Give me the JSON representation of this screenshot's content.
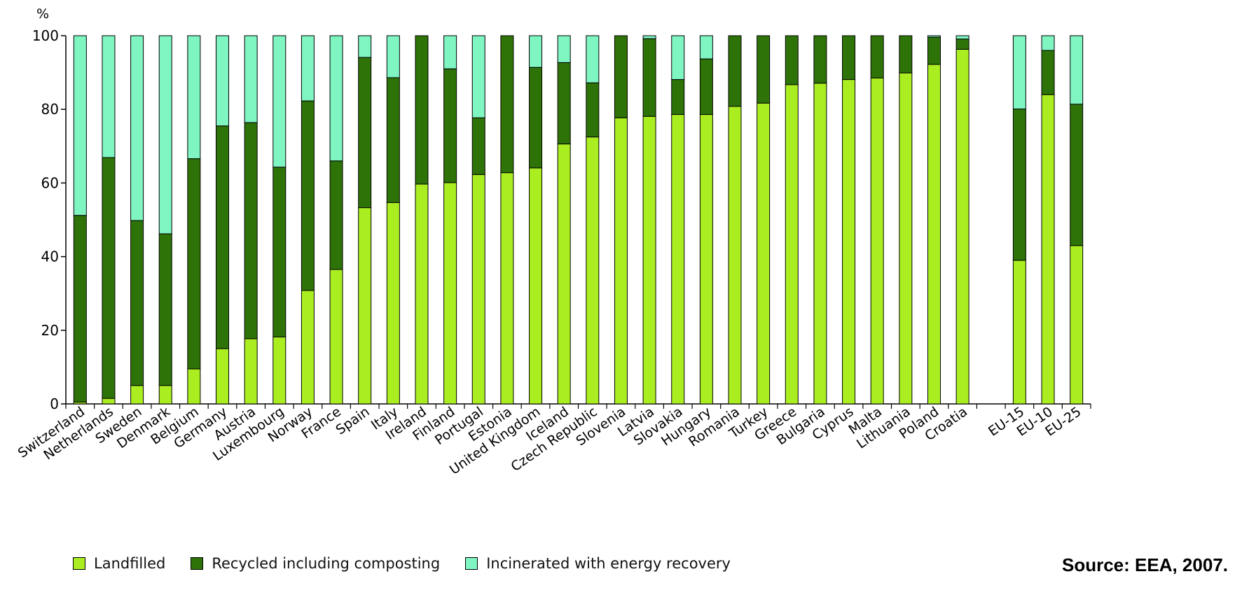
{
  "chart_data": {
    "type": "bar",
    "stacked": true,
    "ylabel": "%",
    "ylim": [
      0,
      100
    ],
    "yticks": [
      0,
      20,
      40,
      60,
      80,
      100
    ],
    "categories": [
      "Switzerland",
      "Netherlands",
      "Sweden",
      "Denmark",
      "Belgium",
      "Germany",
      "Austria",
      "Luxembourg",
      "Norway",
      "France",
      "Spain",
      "Italy",
      "Ireland",
      "Finland",
      "Portugal",
      "Estonia",
      "United Kingdom",
      "Iceland",
      "Czech Republic",
      "Slovenia",
      "Latvia",
      "Slovakia",
      "Hungary",
      "Romania",
      "Turkey",
      "Greece",
      "Bulgaria",
      "Cyprus",
      "Malta",
      "Lithuania",
      "Poland",
      "Croatia",
      "",
      "EU-15",
      "EU-10",
      "EU-25"
    ],
    "series": [
      {
        "name": "Landfilled",
        "color": "#aaee22",
        "values": [
          0.5,
          1.5,
          5,
          5,
          9.5,
          15,
          17.7,
          18.2,
          30.8,
          36.5,
          53.3,
          54.7,
          59.7,
          60.1,
          62.3,
          62.8,
          64.1,
          70.6,
          72.5,
          77.7,
          78.1,
          78.6,
          78.6,
          80.8,
          81.7,
          86.7,
          87.1,
          88.1,
          88.5,
          89.9,
          92.2,
          96.3,
          null,
          39,
          84,
          43
        ]
      },
      {
        "name": "Recycled including composting",
        "color": "#2e7308",
        "values": [
          50.7,
          65.4,
          44.8,
          41.2,
          57.1,
          60.5,
          58.7,
          46.1,
          51.5,
          29.5,
          40.8,
          33.9,
          40.3,
          30.9,
          15.4,
          37.2,
          27.3,
          22.1,
          14.7,
          22.3,
          21.1,
          9.5,
          15.1,
          19.2,
          18.3,
          13.3,
          12.9,
          11.9,
          11.5,
          10.1,
          7.4,
          2.8,
          null,
          41.1,
          12,
          38.4
        ]
      },
      {
        "name": "Incinerated with energy recovery",
        "color": "#7ff5c2",
        "values": [
          48.8,
          33.1,
          50.2,
          53.8,
          33.4,
          24.5,
          23.6,
          35.7,
          17.7,
          34,
          5.9,
          11.4,
          0,
          9,
          22.3,
          0,
          8.6,
          7.3,
          12.8,
          0,
          0.8,
          11.9,
          6.3,
          0,
          0,
          0,
          0,
          0,
          0,
          0,
          0.4,
          0.9,
          null,
          19.9,
          4,
          18.6
        ]
      }
    ]
  },
  "legend": [
    {
      "label": "Landfilled",
      "color": "#aaee22"
    },
    {
      "label": "Recycled including composting",
      "color": "#2e7308"
    },
    {
      "label": "Incinerated with energy recovery",
      "color": "#7ff5c2"
    }
  ],
  "source": "Source: EEA, 2007."
}
